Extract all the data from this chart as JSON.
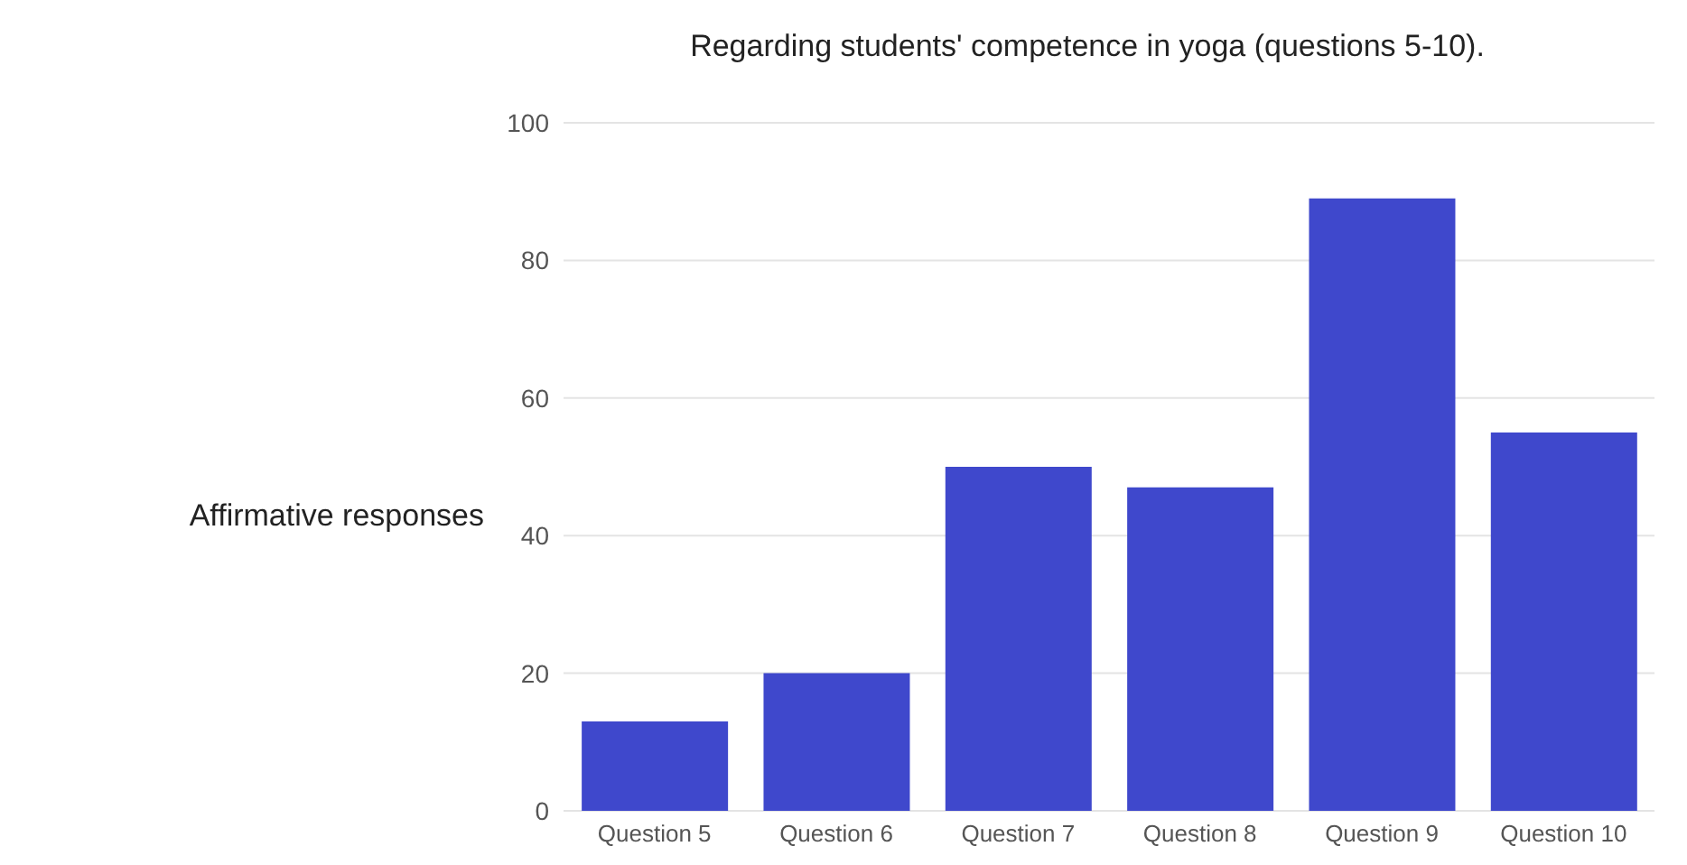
{
  "chart_data": {
    "type": "bar",
    "title": "Regarding students' competence in yoga (questions 5-10).",
    "ylabel": "Affirmative responses",
    "categories": [
      "Question 5",
      "Question 6",
      "Question 7",
      "Question 8",
      "Question 9",
      "Question 10"
    ],
    "values": [
      13,
      20,
      50,
      47,
      89,
      55
    ],
    "color": "#3f48cc",
    "ylim": [
      0,
      100
    ],
    "yticks": [
      0,
      20,
      40,
      60,
      80,
      100
    ],
    "grid": "y",
    "legend": false
  }
}
